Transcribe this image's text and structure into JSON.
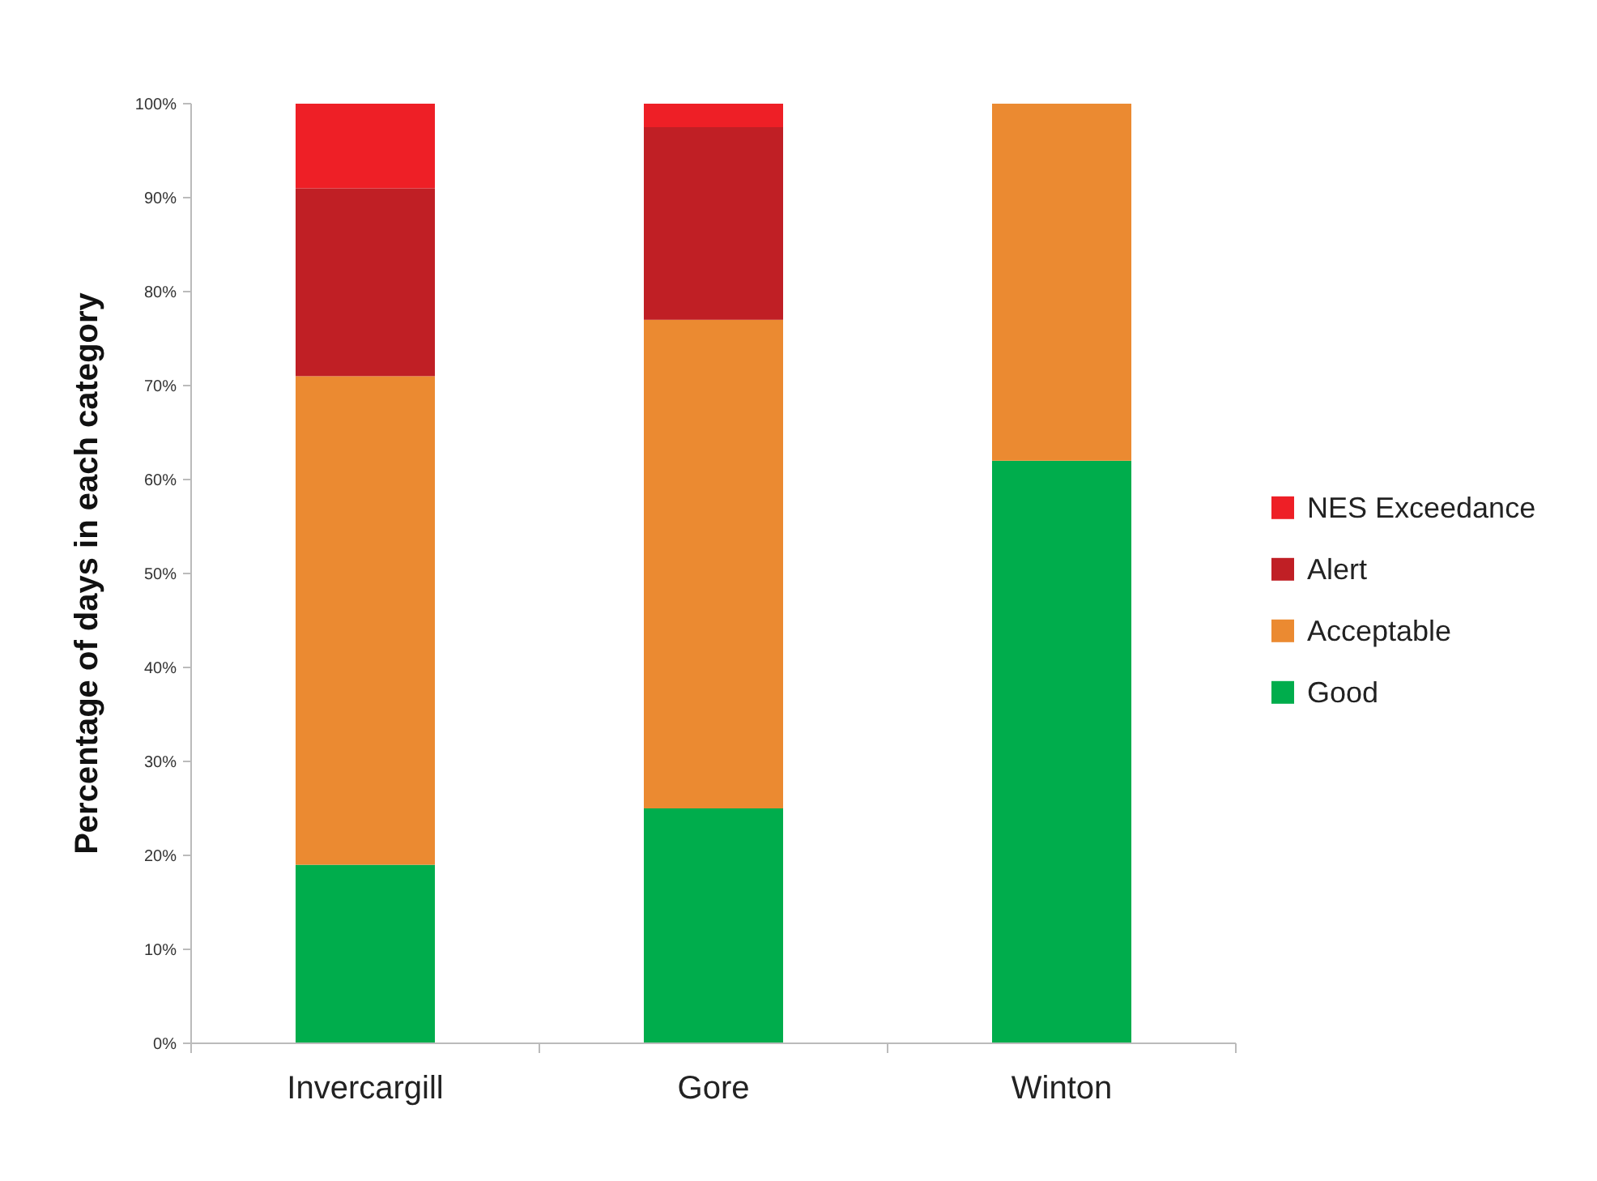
{
  "chart_data": {
    "type": "bar",
    "stacked": true,
    "ylabel": "Percentage of days in each category",
    "categories": [
      "Invercargill",
      "Gore",
      "Winton"
    ],
    "series": [
      {
        "name": "Good",
        "color": "#00ad4c",
        "values": [
          19,
          25,
          62
        ]
      },
      {
        "name": "Acceptable",
        "color": "#eb8a31",
        "values": [
          52,
          52,
          38
        ]
      },
      {
        "name": "Alert",
        "color": "#c01f25",
        "values": [
          20,
          20.5,
          0
        ]
      },
      {
        "name": "NES Exceedance",
        "color": "#ee1f26",
        "values": [
          9,
          2.5,
          0
        ]
      }
    ],
    "ylim": [
      0,
      100
    ],
    "yticks": [
      {
        "value": 0,
        "label": "0%"
      },
      {
        "value": 10,
        "label": "10%"
      },
      {
        "value": 20,
        "label": "20%"
      },
      {
        "value": 30,
        "label": "30%"
      },
      {
        "value": 40,
        "label": "40%"
      },
      {
        "value": 50,
        "label": "50%"
      },
      {
        "value": 60,
        "label": "60%"
      },
      {
        "value": 70,
        "label": "70%"
      },
      {
        "value": 80,
        "label": "80%"
      },
      {
        "value": 90,
        "label": "90%"
      },
      {
        "value": 100,
        "label": "100%"
      }
    ],
    "legend": "right",
    "grid": false
  }
}
